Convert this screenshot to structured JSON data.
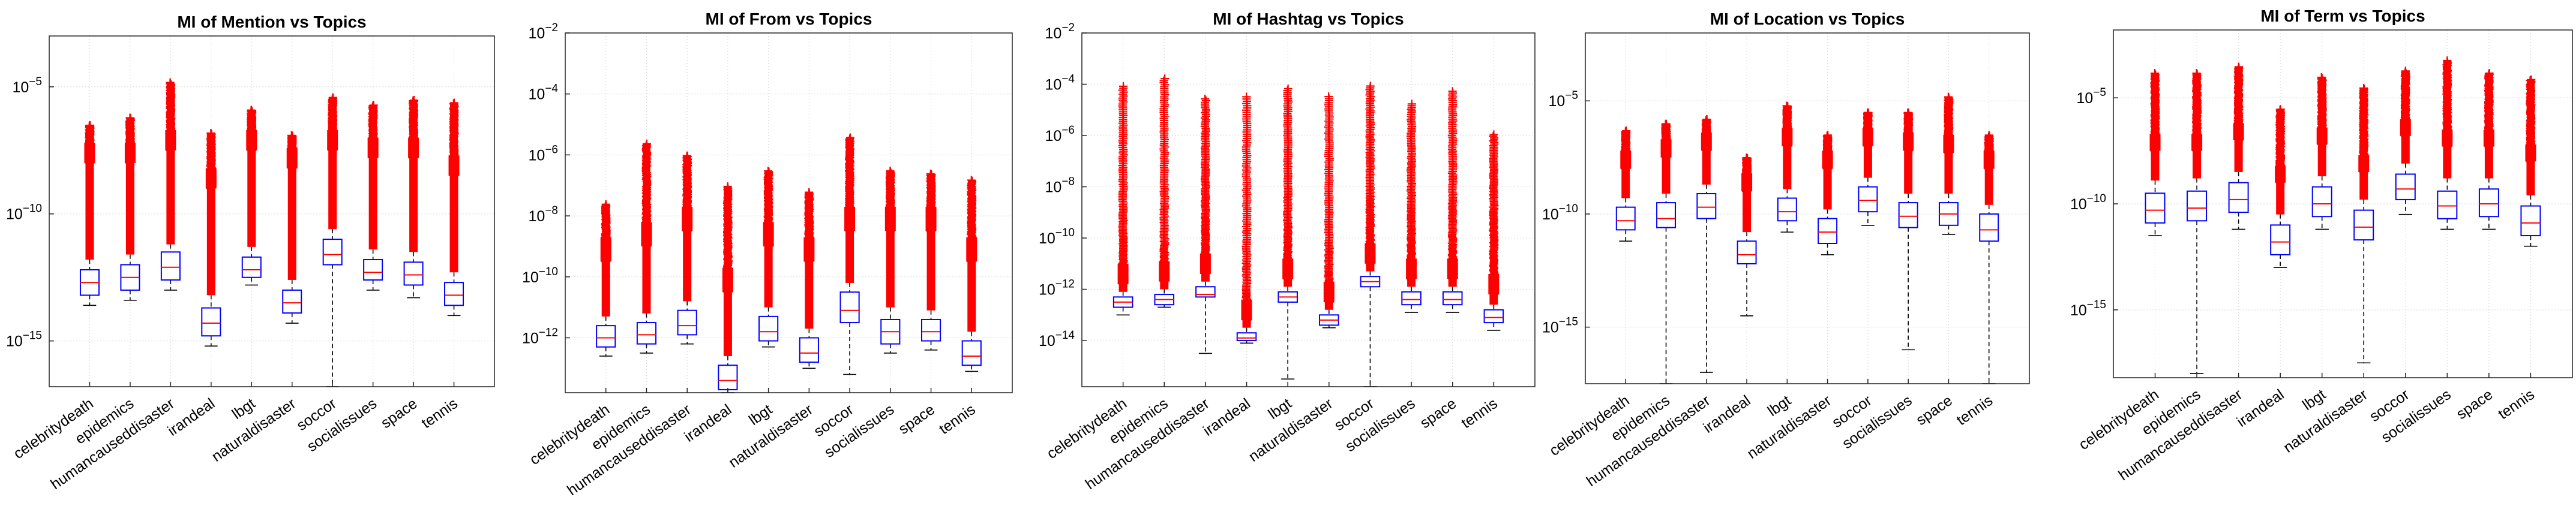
{
  "colors": {
    "outlier": "#ff0000",
    "box": "#0000ff",
    "median": "#ff0000",
    "whisker": "#000000",
    "grid": "#d9d9d9"
  },
  "chart_data": [
    {
      "type": "box",
      "title": "MI of Mention vs Topics",
      "scale": "log",
      "ylim_exp": [
        -16.8,
        -3
      ],
      "ticks": [
        {
          "exp": -15,
          "label": "10"
        },
        {
          "exp": -10,
          "label": "10"
        },
        {
          "exp": -5,
          "label": "10"
        }
      ],
      "categories": [
        "celebritydeath",
        "epidemics",
        "humancauseddisaster",
        "irandeal",
        "lbgt",
        "naturaldisaster",
        "soccor",
        "socialissues",
        "space",
        "tennis"
      ],
      "boxes": [
        {
          "lo": -13.6,
          "q1": -13.2,
          "med": -12.7,
          "q3": -12.2,
          "hi": -11.8,
          "out_lo": -8.0,
          "out_hi": -6.5
        },
        {
          "lo": -13.4,
          "q1": -13.0,
          "med": -12.5,
          "q3": -12.0,
          "hi": -11.6,
          "out_lo": -8.0,
          "out_hi": -6.2
        },
        {
          "lo": -13.0,
          "q1": -12.6,
          "med": -12.1,
          "q3": -11.5,
          "hi": -11.2,
          "out_lo": -7.5,
          "out_hi": -4.8
        },
        {
          "lo": -15.2,
          "q1": -14.8,
          "med": -14.3,
          "q3": -13.7,
          "hi": -13.2,
          "out_lo": -9.0,
          "out_hi": -6.8
        },
        {
          "lo": -12.8,
          "q1": -12.5,
          "med": -12.2,
          "q3": -11.7,
          "hi": -11.3,
          "out_lo": -7.5,
          "out_hi": -5.9
        },
        {
          "lo": -14.3,
          "q1": -13.9,
          "med": -13.5,
          "q3": -13.0,
          "hi": -12.6,
          "out_lo": -8.2,
          "out_hi": -6.9
        },
        {
          "lo": -16.8,
          "q1": -12.0,
          "med": -11.6,
          "q3": -11.0,
          "hi": -10.6,
          "out_lo": -7.5,
          "out_hi": -5.4
        },
        {
          "lo": -13.0,
          "q1": -12.6,
          "med": -12.3,
          "q3": -11.8,
          "hi": -11.4,
          "out_lo": -7.8,
          "out_hi": -5.7
        },
        {
          "lo": -13.3,
          "q1": -12.8,
          "med": -12.4,
          "q3": -11.9,
          "hi": -11.5,
          "out_lo": -7.8,
          "out_hi": -5.5
        },
        {
          "lo": -14.0,
          "q1": -13.6,
          "med": -13.2,
          "q3": -12.7,
          "hi": -12.3,
          "out_lo": -8.5,
          "out_hi": -5.6
        }
      ]
    },
    {
      "type": "box",
      "title": "MI of From vs Topics",
      "scale": "log",
      "ylim_exp": [
        -13.8,
        -2
      ],
      "ticks": [
        {
          "exp": -12,
          "label": "10"
        },
        {
          "exp": -10,
          "label": "10"
        },
        {
          "exp": -8,
          "label": "10"
        },
        {
          "exp": -6,
          "label": "10"
        },
        {
          "exp": -4,
          "label": "10"
        },
        {
          "exp": -2,
          "label": "10"
        }
      ],
      "categories": [
        "celebritydeath",
        "epidemics",
        "humancauseddisaster",
        "irandeal",
        "lbgt",
        "naturaldisaster",
        "soccor",
        "socialissues",
        "space",
        "tennis"
      ],
      "boxes": [
        {
          "lo": -12.6,
          "q1": -12.3,
          "med": -12.0,
          "q3": -11.6,
          "hi": -11.3,
          "out_lo": -9.5,
          "out_hi": -7.6
        },
        {
          "lo": -12.5,
          "q1": -12.2,
          "med": -11.9,
          "q3": -11.5,
          "hi": -11.2,
          "out_lo": -9.0,
          "out_hi": -5.6
        },
        {
          "lo": -12.2,
          "q1": -11.9,
          "med": -11.6,
          "q3": -11.1,
          "hi": -10.8,
          "out_lo": -8.5,
          "out_hi": -6.0
        },
        {
          "lo": -13.8,
          "q1": -13.7,
          "med": -13.4,
          "q3": -12.9,
          "hi": -12.6,
          "out_lo": -10.5,
          "out_hi": -7.0
        },
        {
          "lo": -12.3,
          "q1": -12.1,
          "med": -11.8,
          "q3": -11.3,
          "hi": -11.0,
          "out_lo": -9.0,
          "out_hi": -6.5
        },
        {
          "lo": -13.0,
          "q1": -12.8,
          "med": -12.5,
          "q3": -12.0,
          "hi": -11.7,
          "out_lo": -9.5,
          "out_hi": -7.2
        },
        {
          "lo": -13.2,
          "q1": -11.5,
          "med": -11.1,
          "q3": -10.5,
          "hi": -10.2,
          "out_lo": -8.5,
          "out_hi": -5.4
        },
        {
          "lo": -12.5,
          "q1": -12.2,
          "med": -11.8,
          "q3": -11.4,
          "hi": -11.0,
          "out_lo": -8.5,
          "out_hi": -6.5
        },
        {
          "lo": -12.4,
          "q1": -12.1,
          "med": -11.8,
          "q3": -11.4,
          "hi": -11.1,
          "out_lo": -8.5,
          "out_hi": -6.6
        },
        {
          "lo": -13.1,
          "q1": -12.9,
          "med": -12.6,
          "q3": -12.1,
          "hi": -11.8,
          "out_lo": -9.5,
          "out_hi": -6.8
        }
      ]
    },
    {
      "type": "box",
      "title": "MI of Hashtag vs Topics",
      "scale": "log",
      "ylim_exp": [
        -15.8,
        -2
      ],
      "ticks": [
        {
          "exp": -14,
          "label": "10"
        },
        {
          "exp": -12,
          "label": "10"
        },
        {
          "exp": -10,
          "label": "10"
        },
        {
          "exp": -8,
          "label": "10"
        },
        {
          "exp": -6,
          "label": "10"
        },
        {
          "exp": -4,
          "label": "10"
        },
        {
          "exp": -2,
          "label": "10"
        }
      ],
      "categories": [
        "celebritydeath",
        "epidemics",
        "humancauseddisaster",
        "irandeal",
        "lbgt",
        "naturaldisaster",
        "soccor",
        "socialissues",
        "space",
        "tennis"
      ],
      "boxes": [
        {
          "lo": -13.0,
          "q1": -12.7,
          "med": -12.5,
          "q3": -12.3,
          "hi": -12.1,
          "out_lo": -11.8,
          "out_hi": -4.0
        },
        {
          "lo": -12.7,
          "q1": -12.6,
          "med": -12.4,
          "q3": -12.2,
          "hi": -12.0,
          "out_lo": -11.7,
          "out_hi": -3.7
        },
        {
          "lo": -14.5,
          "q1": -12.3,
          "med": -12.2,
          "q3": -11.9,
          "hi": -11.7,
          "out_lo": -11.4,
          "out_hi": -4.5
        },
        {
          "lo": -14.1,
          "q1": -14.0,
          "med": -13.9,
          "q3": -13.7,
          "hi": -13.5,
          "out_lo": -13.2,
          "out_hi": -4.4
        },
        {
          "lo": -15.5,
          "q1": -12.5,
          "med": -12.3,
          "q3": -12.1,
          "hi": -11.9,
          "out_lo": -11.6,
          "out_hi": -4.1
        },
        {
          "lo": -13.5,
          "q1": -13.4,
          "med": -13.2,
          "q3": -13.0,
          "hi": -12.8,
          "out_lo": -12.5,
          "out_hi": -4.4
        },
        {
          "lo": -15.8,
          "q1": -11.9,
          "med": -11.7,
          "q3": -11.5,
          "hi": -11.3,
          "out_lo": -11.0,
          "out_hi": -4.0
        },
        {
          "lo": -12.9,
          "q1": -12.6,
          "med": -12.4,
          "q3": -12.1,
          "hi": -11.9,
          "out_lo": -11.6,
          "out_hi": -4.7
        },
        {
          "lo": -12.9,
          "q1": -12.6,
          "med": -12.4,
          "q3": -12.1,
          "hi": -11.9,
          "out_lo": -11.6,
          "out_hi": -4.2
        },
        {
          "lo": -13.6,
          "q1": -13.3,
          "med": -13.1,
          "q3": -12.8,
          "hi": -12.6,
          "out_lo": -12.2,
          "out_hi": -5.9
        }
      ]
    },
    {
      "type": "box",
      "title": "MI of Location vs Topics",
      "scale": "log",
      "ylim_exp": [
        -17.5,
        -2
      ],
      "ticks": [
        {
          "exp": -15,
          "label": "10"
        },
        {
          "exp": -10,
          "label": "10"
        },
        {
          "exp": -5,
          "label": "10"
        }
      ],
      "categories": [
        "celebritydeath",
        "epidemics",
        "humancauseddisaster",
        "irandeal",
        "lbgt",
        "naturaldisaster",
        "soccor",
        "socialissues",
        "space",
        "tennis"
      ],
      "boxes": [
        {
          "lo": -11.2,
          "q1": -10.7,
          "med": -10.3,
          "q3": -9.7,
          "hi": -9.3,
          "out_lo": -8.0,
          "out_hi": -6.3
        },
        {
          "lo": -17.5,
          "q1": -10.6,
          "med": -10.2,
          "q3": -9.5,
          "hi": -9.1,
          "out_lo": -7.5,
          "out_hi": -6.0
        },
        {
          "lo": -17.0,
          "q1": -10.2,
          "med": -9.7,
          "q3": -9.1,
          "hi": -8.7,
          "out_lo": -7.2,
          "out_hi": -5.8
        },
        {
          "lo": -14.5,
          "q1": -12.2,
          "med": -11.8,
          "q3": -11.2,
          "hi": -10.8,
          "out_lo": -9.0,
          "out_hi": -7.5
        },
        {
          "lo": -10.8,
          "q1": -10.3,
          "med": -9.9,
          "q3": -9.3,
          "hi": -8.9,
          "out_lo": -7.0,
          "out_hi": -5.2
        },
        {
          "lo": -11.8,
          "q1": -11.3,
          "med": -10.8,
          "q3": -10.2,
          "hi": -9.8,
          "out_lo": -8.0,
          "out_hi": -6.5
        },
        {
          "lo": -10.5,
          "q1": -9.9,
          "med": -9.4,
          "q3": -8.8,
          "hi": -8.4,
          "out_lo": -7.0,
          "out_hi": -5.5
        },
        {
          "lo": -16.0,
          "q1": -10.6,
          "med": -10.1,
          "q3": -9.5,
          "hi": -9.1,
          "out_lo": -7.2,
          "out_hi": -5.5
        },
        {
          "lo": -10.9,
          "q1": -10.5,
          "med": -10.0,
          "q3": -9.5,
          "hi": -9.1,
          "out_lo": -7.3,
          "out_hi": -4.8
        },
        {
          "lo": -17.5,
          "q1": -11.2,
          "med": -10.7,
          "q3": -10.0,
          "hi": -9.6,
          "out_lo": -8.0,
          "out_hi": -6.5
        }
      ]
    },
    {
      "type": "box",
      "title": "MI of Term vs Topics",
      "scale": "log",
      "ylim_exp": [
        -18.2,
        -1.8
      ],
      "ticks": [
        {
          "exp": -15,
          "label": "10"
        },
        {
          "exp": -10,
          "label": "10"
        },
        {
          "exp": -5,
          "label": "10"
        }
      ],
      "categories": [
        "celebritydeath",
        "epidemics",
        "humancauseddisaster",
        "irandeal",
        "lbgt",
        "naturaldisaster",
        "soccor",
        "socialissues",
        "space",
        "tennis"
      ],
      "boxes": [
        {
          "lo": -11.5,
          "q1": -10.9,
          "med": -10.3,
          "q3": -9.5,
          "hi": -8.9,
          "out_lo": -7.5,
          "out_hi": -3.8
        },
        {
          "lo": -18.0,
          "q1": -10.8,
          "med": -10.2,
          "q3": -9.4,
          "hi": -8.8,
          "out_lo": -7.5,
          "out_hi": -3.8
        },
        {
          "lo": -11.2,
          "q1": -10.4,
          "med": -9.8,
          "q3": -9.0,
          "hi": -8.5,
          "out_lo": -7.0,
          "out_hi": -3.5
        },
        {
          "lo": -13.0,
          "q1": -12.4,
          "med": -11.8,
          "q3": -11.0,
          "hi": -10.5,
          "out_lo": -9.0,
          "out_hi": -5.5
        },
        {
          "lo": -11.2,
          "q1": -10.6,
          "med": -10.0,
          "q3": -9.2,
          "hi": -8.7,
          "out_lo": -7.2,
          "out_hi": -4.0
        },
        {
          "lo": -17.5,
          "q1": -11.7,
          "med": -11.1,
          "q3": -10.3,
          "hi": -9.8,
          "out_lo": -8.5,
          "out_hi": -4.5
        },
        {
          "lo": -10.5,
          "q1": -9.8,
          "med": -9.3,
          "q3": -8.6,
          "hi": -8.1,
          "out_lo": -6.8,
          "out_hi": -3.7
        },
        {
          "lo": -11.2,
          "q1": -10.7,
          "med": -10.1,
          "q3": -9.4,
          "hi": -8.8,
          "out_lo": -7.3,
          "out_hi": -3.2
        },
        {
          "lo": -11.2,
          "q1": -10.6,
          "med": -10.0,
          "q3": -9.3,
          "hi": -8.8,
          "out_lo": -7.3,
          "out_hi": -3.8
        },
        {
          "lo": -12.0,
          "q1": -11.5,
          "med": -10.9,
          "q3": -10.1,
          "hi": -9.6,
          "out_lo": -8.0,
          "out_hi": -4.1
        }
      ]
    }
  ]
}
